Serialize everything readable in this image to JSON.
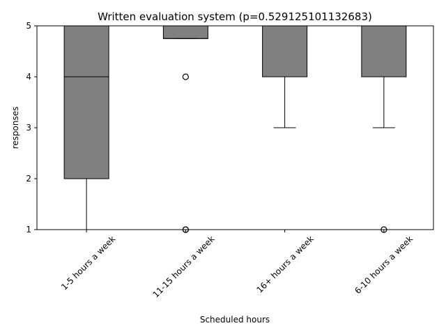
{
  "chart_data": {
    "type": "box",
    "title": "Written evaluation system (p=0.529125101132683)",
    "xlabel": "Scheduled hours",
    "ylabel": "responses",
    "ylim": [
      1,
      5
    ],
    "yticks": [
      1,
      2,
      3,
      4,
      5
    ],
    "categories": [
      "1-5 hours a week",
      "11-15 hours a week",
      "16+ hours a week",
      "6-10 hours a week"
    ],
    "boxes": [
      {
        "category": "1-5 hours a week",
        "whisker_low": 1,
        "q1": 2,
        "median": 4,
        "q3": 5,
        "whisker_high": 5,
        "outliers": []
      },
      {
        "category": "11-15 hours a week",
        "whisker_low": 4.75,
        "q1": 4.75,
        "median": 4.75,
        "q3": 5,
        "whisker_high": 5,
        "outliers": [
          4,
          1,
          1
        ]
      },
      {
        "category": "16+ hours a week",
        "whisker_low": 3,
        "q1": 4,
        "median": 4,
        "q3": 5,
        "whisker_high": 5,
        "outliers": []
      },
      {
        "category": "6-10 hours a week",
        "whisker_low": 3,
        "q1": 4,
        "median": 4,
        "q3": 5,
        "whisker_high": 5,
        "outliers": [
          1
        ]
      }
    ],
    "box_color": "#808080",
    "line_color": "#000000",
    "grid": false,
    "legend": "none",
    "xtick_rotation": 45
  }
}
